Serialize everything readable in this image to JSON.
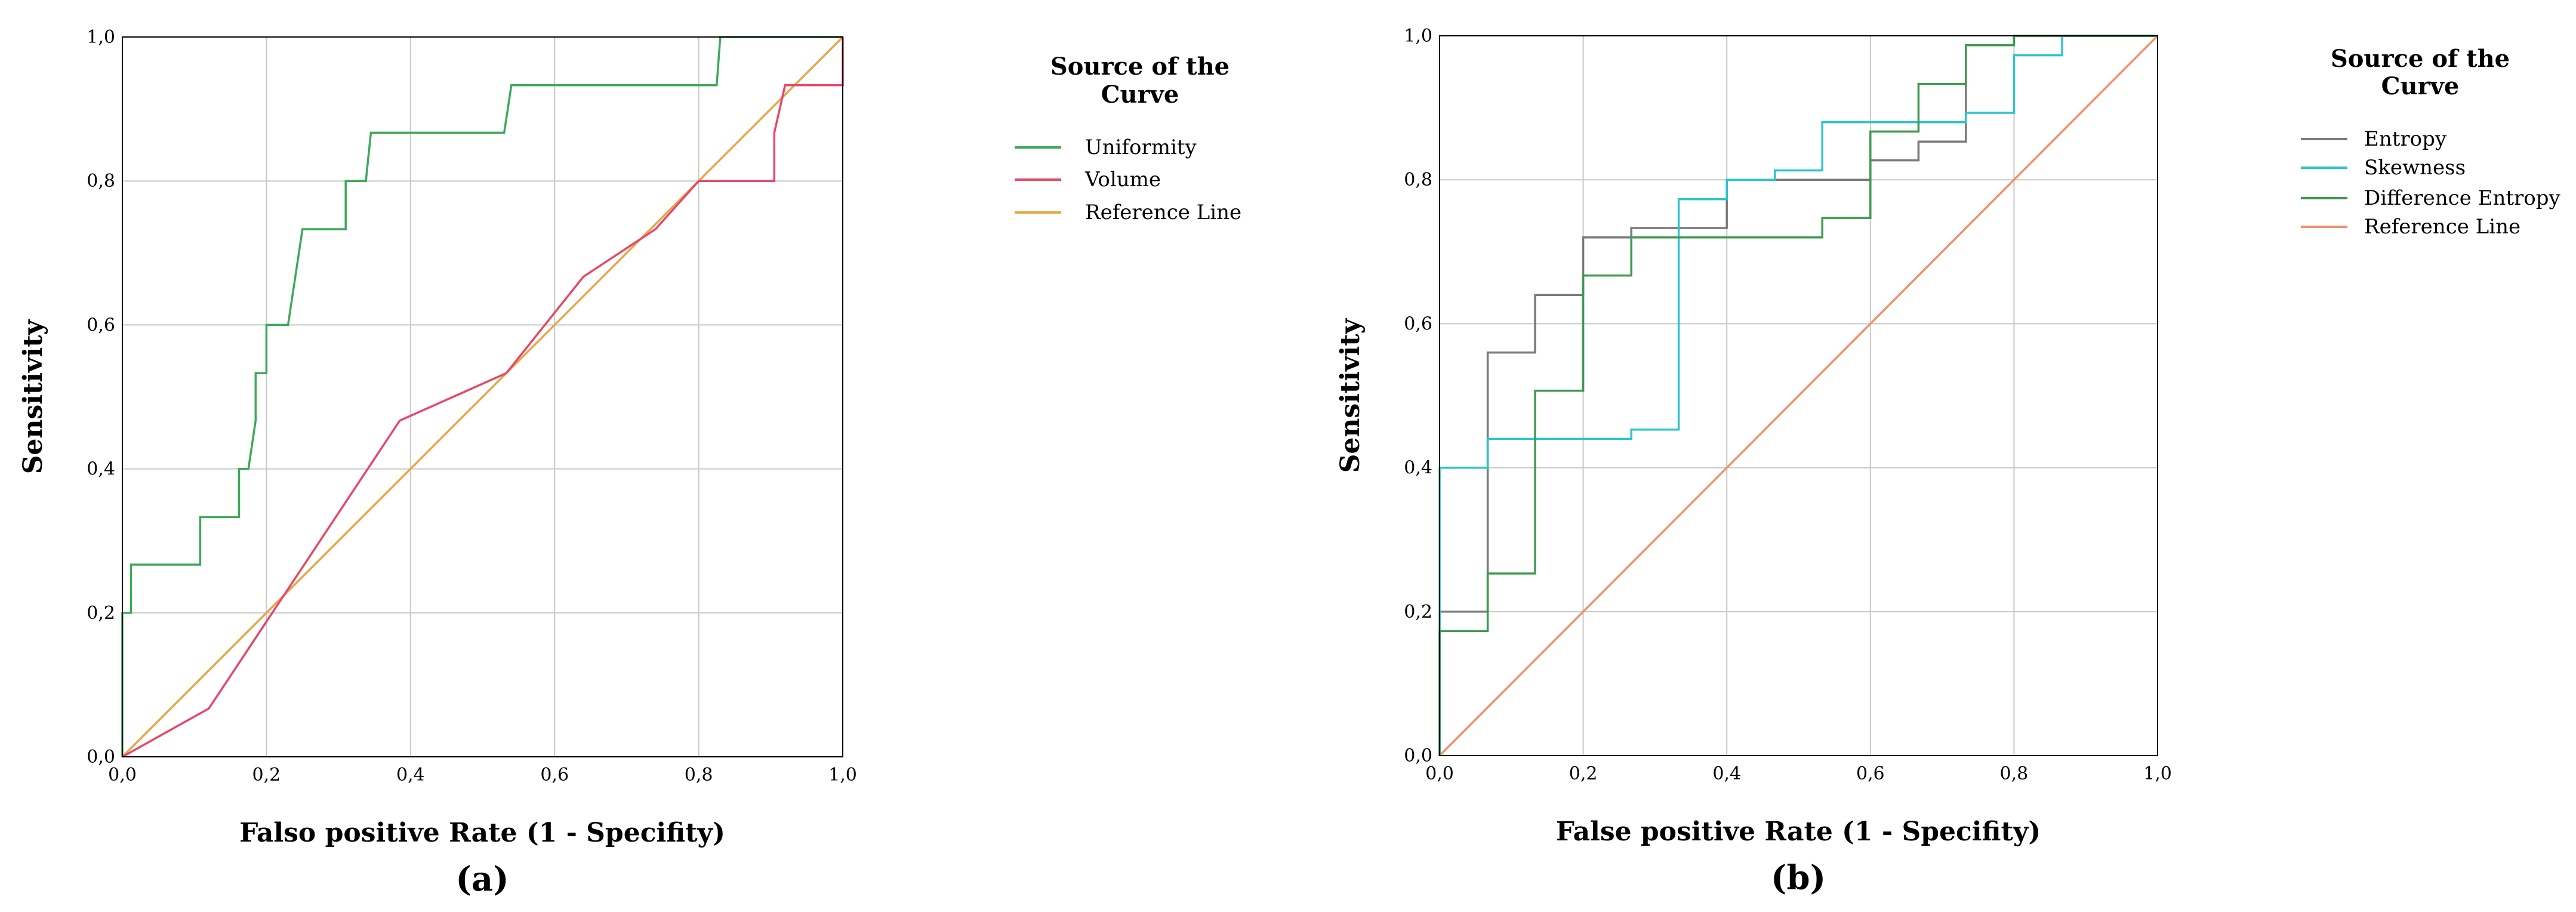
{
  "chart_data": [
    {
      "type": "line",
      "panel_label": "(a)",
      "xlabel": "Falso positive Rate (1 - Specifity)",
      "ylabel": "Sensitivity",
      "xlim": [
        0,
        1
      ],
      "ylim": [
        0,
        1
      ],
      "grid": true,
      "x_ticks": [
        "0,0",
        "0,2",
        "0,4",
        "0,6",
        "0,8",
        "1,0"
      ],
      "y_ticks": [
        "0,0",
        "0,2",
        "0,4",
        "0,6",
        "0,8",
        "1,0"
      ],
      "legend": {
        "title_lines": [
          "Source of the",
          "Curve"
        ],
        "placement": "right"
      },
      "series": [
        {
          "name": "Uniformity",
          "color": "#3ea85a",
          "points": [
            [
              0,
              0
            ],
            [
              0,
              0.2
            ],
            [
              0.012,
              0.2
            ],
            [
              0.012,
              0.267
            ],
            [
              0.108,
              0.267
            ],
            [
              0.108,
              0.333
            ],
            [
              0.162,
              0.333
            ],
            [
              0.162,
              0.4
            ],
            [
              0.175,
              0.4
            ],
            [
              0.185,
              0.467
            ],
            [
              0.185,
              0.533
            ],
            [
              0.2,
              0.533
            ],
            [
              0.2,
              0.6
            ],
            [
              0.23,
              0.6
            ],
            [
              0.25,
              0.733
            ],
            [
              0.31,
              0.733
            ],
            [
              0.31,
              0.8
            ],
            [
              0.338,
              0.8
            ],
            [
              0.345,
              0.867
            ],
            [
              0.53,
              0.867
            ],
            [
              0.54,
              0.933
            ],
            [
              0.825,
              0.933
            ],
            [
              0.83,
              1.0
            ],
            [
              1.0,
              1.0
            ]
          ]
        },
        {
          "name": "Volume",
          "color": "#e8476a",
          "points": [
            [
              0,
              0
            ],
            [
              0.12,
              0.067
            ],
            [
              0.385,
              0.467
            ],
            [
              0.533,
              0.533
            ],
            [
              0.64,
              0.667
            ],
            [
              0.74,
              0.733
            ],
            [
              0.8,
              0.8
            ],
            [
              0.905,
              0.8
            ],
            [
              0.905,
              0.867
            ],
            [
              0.92,
              0.933
            ],
            [
              1.0,
              0.933
            ],
            [
              1.0,
              1.0
            ]
          ]
        },
        {
          "name": "Reference Line",
          "color": "#e6a845",
          "points": [
            [
              0,
              0
            ],
            [
              1,
              1
            ]
          ]
        }
      ]
    },
    {
      "type": "line",
      "panel_label": "(b)",
      "xlabel": "False positive Rate (1 - Specifity)",
      "ylabel": "Sensitivity",
      "xlim": [
        0,
        1
      ],
      "ylim": [
        0,
        1
      ],
      "grid": true,
      "x_ticks": [
        "0,0",
        "0,2",
        "0,4",
        "0,6",
        "0,8",
        "1,0"
      ],
      "y_ticks": [
        "0,0",
        "0,2",
        "0,4",
        "0,6",
        "0,8",
        "1,0"
      ],
      "legend": {
        "title_lines": [
          "Source of the",
          "Curve"
        ],
        "placement": "right"
      },
      "series": [
        {
          "name": "Entropy",
          "color": "#7a7a7a",
          "points": [
            [
              0,
              0
            ],
            [
              0,
              0.2
            ],
            [
              0.067,
              0.2
            ],
            [
              0.067,
              0.56
            ],
            [
              0.133,
              0.56
            ],
            [
              0.133,
              0.64
            ],
            [
              0.2,
              0.64
            ],
            [
              0.2,
              0.72
            ],
            [
              0.267,
              0.72
            ],
            [
              0.267,
              0.733
            ],
            [
              0.4,
              0.733
            ],
            [
              0.4,
              0.8
            ],
            [
              0.6,
              0.8
            ],
            [
              0.6,
              0.827
            ],
            [
              0.667,
              0.827
            ],
            [
              0.667,
              0.853
            ],
            [
              0.733,
              0.853
            ],
            [
              0.733,
              0.987
            ],
            [
              0.8,
              0.987
            ],
            [
              0.8,
              1.0
            ],
            [
              1.0,
              1.0
            ]
          ]
        },
        {
          "name": "Skewness",
          "color": "#2ec4c9",
          "points": [
            [
              0,
              0
            ],
            [
              0,
              0.4
            ],
            [
              0.067,
              0.4
            ],
            [
              0.067,
              0.44
            ],
            [
              0.267,
              0.44
            ],
            [
              0.267,
              0.453
            ],
            [
              0.333,
              0.453
            ],
            [
              0.333,
              0.773
            ],
            [
              0.4,
              0.773
            ],
            [
              0.4,
              0.8
            ],
            [
              0.467,
              0.8
            ],
            [
              0.467,
              0.813
            ],
            [
              0.533,
              0.813
            ],
            [
              0.533,
              0.88
            ],
            [
              0.733,
              0.88
            ],
            [
              0.733,
              0.893
            ],
            [
              0.8,
              0.893
            ],
            [
              0.8,
              0.973
            ],
            [
              0.867,
              0.973
            ],
            [
              0.867,
              1.0
            ],
            [
              1.0,
              1.0
            ]
          ]
        },
        {
          "name": "Difference Entropy",
          "color": "#3e9a4f",
          "points": [
            [
              0,
              0
            ],
            [
              0,
              0.173
            ],
            [
              0.067,
              0.173
            ],
            [
              0.067,
              0.253
            ],
            [
              0.133,
              0.253
            ],
            [
              0.133,
              0.507
            ],
            [
              0.2,
              0.507
            ],
            [
              0.2,
              0.667
            ],
            [
              0.267,
              0.667
            ],
            [
              0.267,
              0.72
            ],
            [
              0.533,
              0.72
            ],
            [
              0.533,
              0.747
            ],
            [
              0.6,
              0.747
            ],
            [
              0.6,
              0.867
            ],
            [
              0.667,
              0.867
            ],
            [
              0.667,
              0.933
            ],
            [
              0.733,
              0.933
            ],
            [
              0.733,
              0.987
            ],
            [
              0.8,
              0.987
            ],
            [
              0.8,
              1.0
            ],
            [
              1.0,
              1.0
            ]
          ]
        },
        {
          "name": "Reference Line",
          "color": "#f2916b",
          "points": [
            [
              0,
              0
            ],
            [
              1,
              1
            ]
          ]
        }
      ]
    }
  ]
}
